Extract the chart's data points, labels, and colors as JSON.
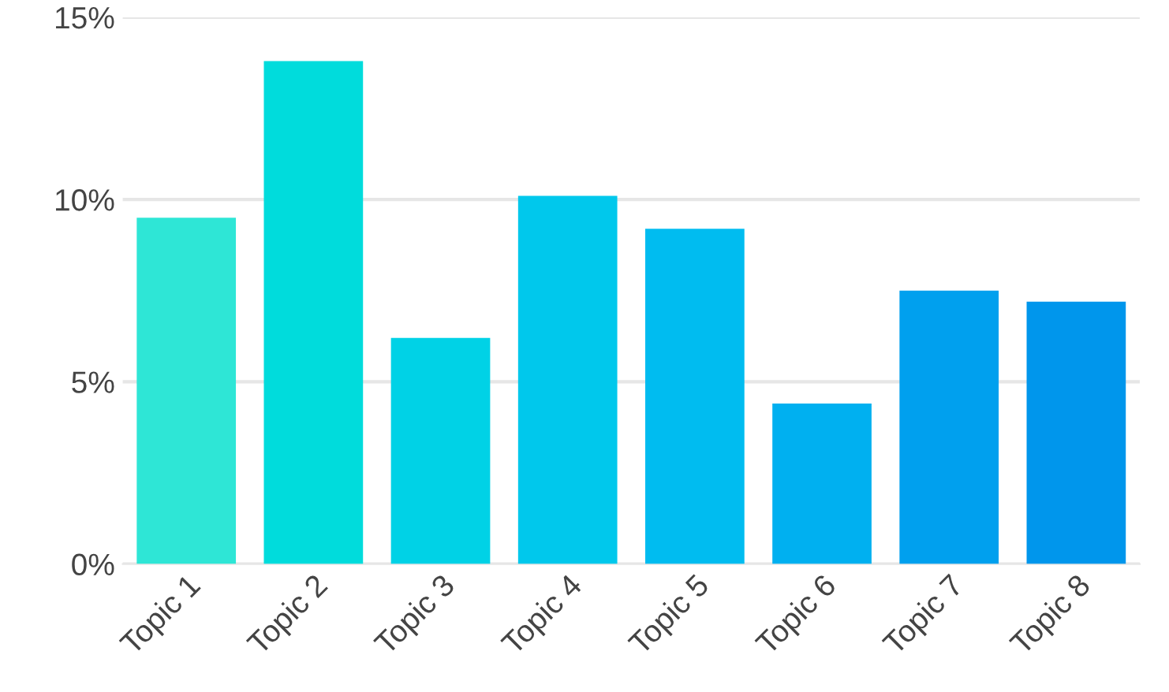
{
  "chart_data": {
    "type": "bar",
    "categories": [
      "Topic 1",
      "Topic 2",
      "Topic 3",
      "Topic 4",
      "Topic 5",
      "Topic 6",
      "Topic 7",
      "Topic 8"
    ],
    "values": [
      9.5,
      13.8,
      6.2,
      10.1,
      9.2,
      4.4,
      7.5,
      7.2
    ],
    "colors": [
      "#2ee6d6",
      "#00dcdc",
      "#00d2e6",
      "#00c8ec",
      "#00bcf0",
      "#00b0f0",
      "#00a0ee",
      "#0096ec"
    ],
    "ylim": [
      0,
      15
    ],
    "yticks": [
      {
        "value": 0,
        "label": "0%"
      },
      {
        "value": 5,
        "label": "5%"
      },
      {
        "value": 10,
        "label": "10%"
      },
      {
        "value": 15,
        "label": "15%"
      }
    ],
    "grid": "y"
  }
}
